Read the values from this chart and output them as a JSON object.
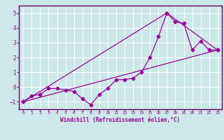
{
  "xlabel": "Windchill (Refroidissement éolien,°C)",
  "background_color": "#cce8e8",
  "line_color": "#990099",
  "xlim": [
    -0.5,
    23.5
  ],
  "ylim": [
    -1.5,
    5.5
  ],
  "yticks": [
    -1,
    0,
    1,
    2,
    3,
    4,
    5
  ],
  "xticks": [
    0,
    1,
    2,
    3,
    4,
    5,
    6,
    7,
    8,
    9,
    10,
    11,
    12,
    13,
    14,
    15,
    16,
    17,
    18,
    19,
    20,
    21,
    22,
    23
  ],
  "series1_x": [
    0,
    1,
    2,
    3,
    4,
    5,
    6,
    7,
    8,
    9,
    10,
    11,
    12,
    13,
    14,
    15,
    16,
    17,
    18,
    19,
    20,
    21,
    22,
    23
  ],
  "series1_y": [
    -1.0,
    -0.6,
    -0.5,
    -0.1,
    -0.1,
    -0.2,
    -0.3,
    -0.8,
    -1.2,
    -0.5,
    -0.1,
    0.5,
    0.5,
    0.6,
    1.0,
    2.0,
    3.4,
    5.0,
    4.4,
    4.3,
    2.5,
    3.1,
    2.5,
    2.5
  ],
  "series2_x": [
    0,
    23
  ],
  "series2_y": [
    -1.0,
    2.5
  ],
  "series3_x": [
    0,
    17,
    23
  ],
  "series3_y": [
    -1.0,
    5.0,
    2.5
  ],
  "grid_color": "#aad4d4",
  "spine_color": "#660066"
}
